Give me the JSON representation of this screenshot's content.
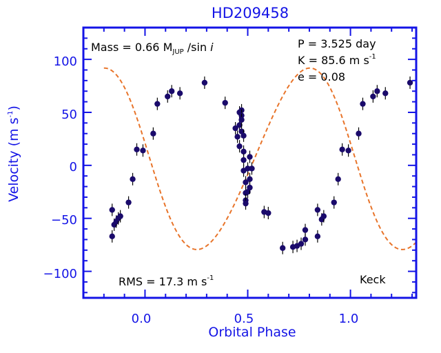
{
  "chart_data": {
    "type": "scatter",
    "title": "HD209458",
    "xlabel": "Orbital Phase",
    "ylabel": "Velocity  (m s",
    "ylabel_sup": "-1",
    "ylabel_close": ")",
    "xlim": [
      -0.3,
      1.32
    ],
    "ylim": [
      -125,
      130
    ],
    "x_ticks": [
      0.0,
      0.5,
      1.0
    ],
    "x_tick_labels": [
      "0.0",
      "0.5",
      "1.0"
    ],
    "y_ticks": [
      -100,
      -50,
      0,
      50,
      100
    ],
    "y_tick_labels": [
      "−100",
      "−50",
      "0",
      "50",
      "100"
    ],
    "annotations": {
      "mass_prefix": "Mass = 0.66 M",
      "mass_sub": "JUP",
      "mass_suffix": " /sin ",
      "mass_i": "i",
      "period": "P  =  3.525 day",
      "k_prefix": "K  =  85.6 m s",
      "k_sup": "-1",
      "ecc": "e  =  0.08",
      "rms_prefix": "RMS = 17.3 m s",
      "rms_sup": "-1",
      "source": "Keck"
    },
    "series": [
      {
        "type": "scatter",
        "color": "#1a0a6b",
        "points": [
          [
            -0.16,
            -42
          ],
          [
            -0.16,
            -67
          ],
          [
            -0.15,
            -56
          ],
          [
            -0.14,
            -53
          ],
          [
            -0.13,
            -50
          ],
          [
            -0.12,
            -48
          ],
          [
            -0.08,
            -35
          ],
          [
            -0.06,
            -13
          ],
          [
            -0.04,
            15
          ],
          [
            -0.01,
            14
          ],
          [
            0.04,
            30
          ],
          [
            0.06,
            58
          ],
          [
            0.11,
            65
          ],
          [
            0.13,
            70
          ],
          [
            0.17,
            68
          ],
          [
            0.29,
            78
          ],
          [
            0.39,
            59
          ],
          [
            0.44,
            35
          ],
          [
            0.45,
            27
          ],
          [
            0.46,
            50
          ],
          [
            0.46,
            38
          ],
          [
            0.46,
            18
          ],
          [
            0.47,
            52
          ],
          [
            0.47,
            47
          ],
          [
            0.47,
            43
          ],
          [
            0.47,
            32
          ],
          [
            0.48,
            28
          ],
          [
            0.48,
            13
          ],
          [
            0.48,
            5
          ],
          [
            0.48,
            -5
          ],
          [
            0.49,
            -16
          ],
          [
            0.49,
            -26
          ],
          [
            0.49,
            -33
          ],
          [
            0.49,
            -36
          ],
          [
            0.5,
            -3
          ],
          [
            0.5,
            -25
          ],
          [
            0.51,
            8
          ],
          [
            0.51,
            -13
          ],
          [
            0.51,
            -21
          ],
          [
            0.52,
            -3
          ],
          [
            0.58,
            -44
          ],
          [
            0.6,
            -45
          ],
          [
            0.67,
            -78
          ],
          [
            0.72,
            -77
          ],
          [
            0.74,
            -76
          ],
          [
            0.76,
            -74
          ],
          [
            0.78,
            -70
          ],
          [
            0.78,
            -61
          ],
          [
            0.84,
            -67
          ],
          [
            0.84,
            -42
          ],
          [
            0.86,
            -51
          ],
          [
            0.87,
            -48
          ],
          [
            0.92,
            -35
          ],
          [
            0.94,
            -13
          ],
          [
            0.96,
            15
          ],
          [
            0.99,
            14
          ],
          [
            1.04,
            30
          ],
          [
            1.06,
            58
          ],
          [
            1.11,
            65
          ],
          [
            1.13,
            70
          ],
          [
            1.17,
            68
          ],
          [
            1.29,
            78
          ]
        ]
      },
      {
        "type": "fit",
        "color": "#e8742a",
        "K": 85.6,
        "e": 0.08,
        "omega_deg": 80,
        "offset": 5,
        "x_range": [
          -0.2,
          1.32
        ]
      }
    ]
  }
}
